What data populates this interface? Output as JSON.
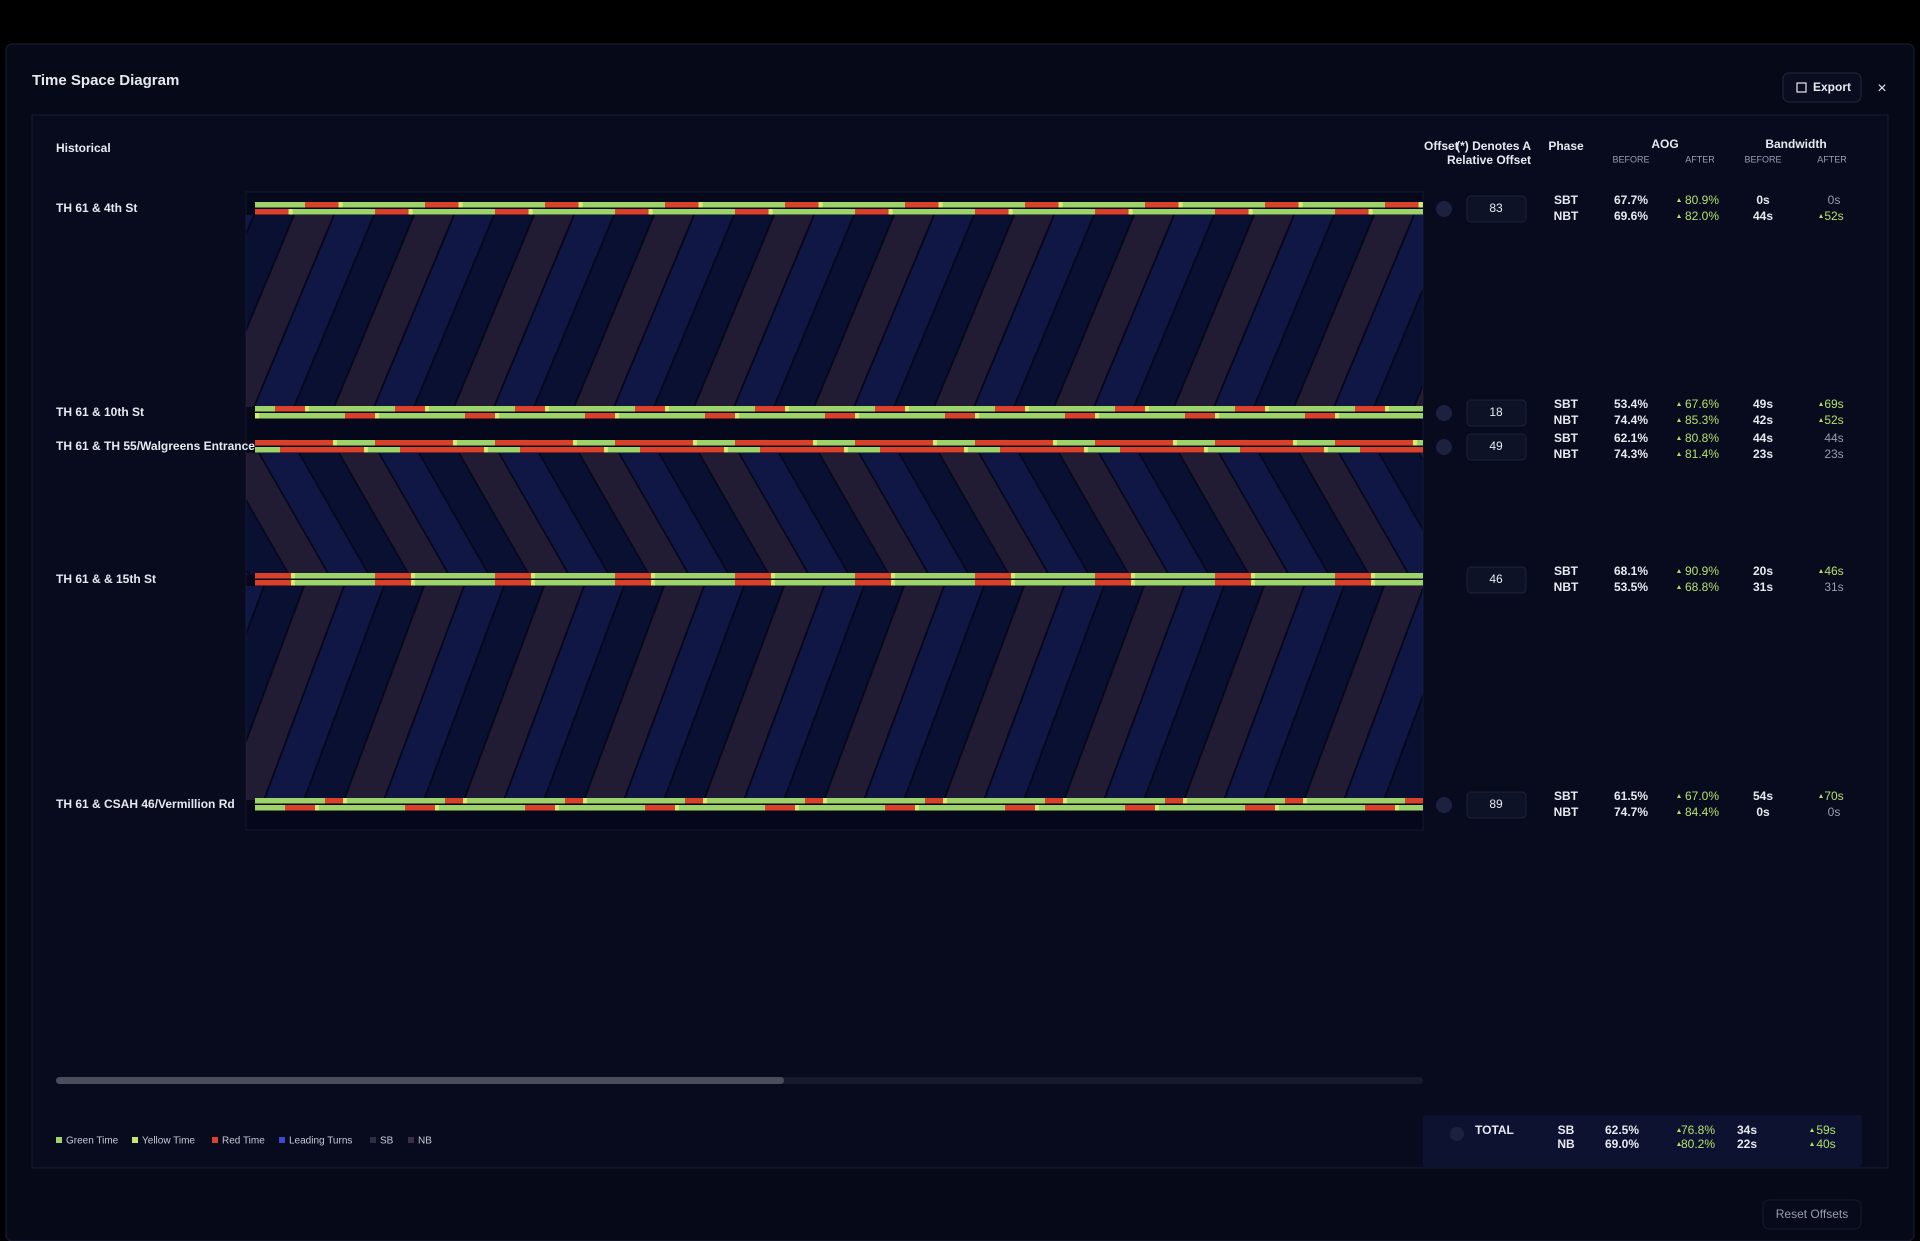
{
  "header": {
    "title": "Time Space Diagram",
    "export": "Export",
    "close": "×"
  },
  "section": "Historical",
  "columns": {
    "offset": "Offset",
    "offset_note_1": "(*) Denotes A",
    "offset_note_2": "Relative Offset",
    "phase": "Phase",
    "aog": "AOG",
    "bandwidth": "Bandwidth",
    "before": "BEFORE",
    "after": "AFTER"
  },
  "intersections": [
    {
      "name": "TH 61 & 4th St",
      "offset": 83,
      "reset_icon": true,
      "phases": [
        {
          "phase": "SBT",
          "aog_before": "67.7%",
          "aog_after": "80.9%",
          "aog_up": true,
          "bw_before": "0s",
          "bw_after": "0s",
          "bw_up": false
        },
        {
          "phase": "NBT",
          "aog_before": "69.6%",
          "aog_after": "82.0%",
          "aog_up": true,
          "bw_before": "44s",
          "bw_after": "52s",
          "bw_up": true
        }
      ]
    },
    {
      "name": "TH 61 & 10th St",
      "offset": 18,
      "reset_icon": true,
      "phases": [
        {
          "phase": "SBT",
          "aog_before": "53.4%",
          "aog_after": "67.6%",
          "aog_up": true,
          "bw_before": "49s",
          "bw_after": "69s",
          "bw_up": true
        },
        {
          "phase": "NBT",
          "aog_before": "74.4%",
          "aog_after": "85.3%",
          "aog_up": true,
          "bw_before": "42s",
          "bw_after": "52s",
          "bw_up": true
        }
      ]
    },
    {
      "name": "TH 61 & TH 55/Walgreens Entrance",
      "offset": 49,
      "reset_icon": true,
      "phases": [
        {
          "phase": "SBT",
          "aog_before": "62.1%",
          "aog_after": "80.8%",
          "aog_up": true,
          "bw_before": "44s",
          "bw_after": "44s",
          "bw_up": false
        },
        {
          "phase": "NBT",
          "aog_before": "74.3%",
          "aog_after": "81.4%",
          "aog_up": true,
          "bw_before": "23s",
          "bw_after": "23s",
          "bw_up": false
        }
      ]
    },
    {
      "name": "TH 61 & & 15th St",
      "offset": 46,
      "reset_icon": false,
      "phases": [
        {
          "phase": "SBT",
          "aog_before": "68.1%",
          "aog_after": "90.9%",
          "aog_up": true,
          "bw_before": "20s",
          "bw_after": "46s",
          "bw_up": true
        },
        {
          "phase": "NBT",
          "aog_before": "53.5%",
          "aog_after": "68.8%",
          "aog_up": true,
          "bw_before": "31s",
          "bw_after": "31s",
          "bw_up": false
        }
      ]
    },
    {
      "name": "TH 61 & CSAH 46/Vermillion Rd",
      "offset": 89,
      "reset_icon": true,
      "phases": [
        {
          "phase": "SBT",
          "aog_before": "61.5%",
          "aog_after": "67.0%",
          "aog_up": true,
          "bw_before": "54s",
          "bw_after": "70s",
          "bw_up": true
        },
        {
          "phase": "NBT",
          "aog_before": "74.7%",
          "aog_after": "84.4%",
          "aog_up": true,
          "bw_before": "0s",
          "bw_after": "0s",
          "bw_up": false
        }
      ]
    }
  ],
  "legend": [
    {
      "label": "Green Time",
      "color": "#9ed36a"
    },
    {
      "label": "Yellow Time",
      "color": "#c8e86a"
    },
    {
      "label": "Red Time",
      "color": "#d9412b"
    },
    {
      "label": "Leading Turns",
      "color": "#3a4bd0"
    },
    {
      "label": "SB",
      "color": "#2a2d48"
    },
    {
      "label": "NB",
      "color": "#3a3044"
    }
  ],
  "total": {
    "label": "TOTAL",
    "rows": [
      {
        "phase": "SB",
        "aog_before": "62.5%",
        "aog_after": "76.8%",
        "bw_before": "34s",
        "bw_after": "59s"
      },
      {
        "phase": "NB",
        "aog_before": "69.0%",
        "aog_after": "80.2%",
        "bw_before": "22s",
        "bw_after": "40s"
      }
    ]
  },
  "reset_offsets": "Reset Offsets"
}
